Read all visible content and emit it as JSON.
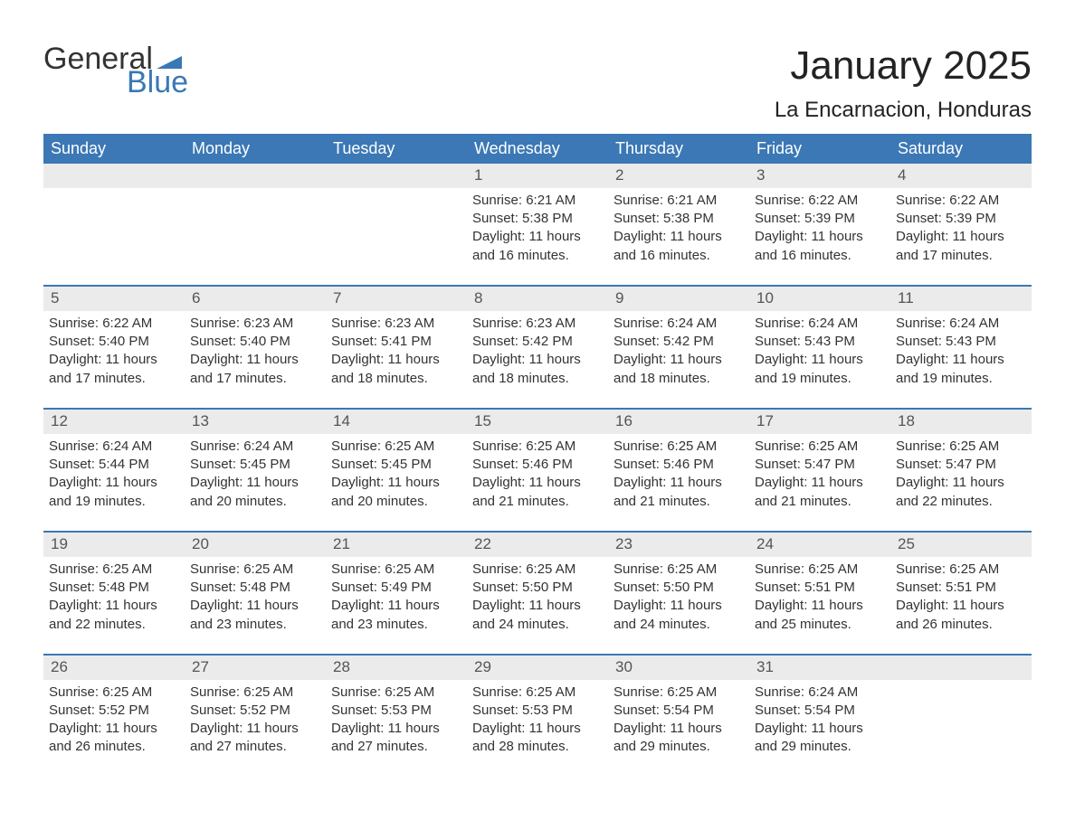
{
  "logo": {
    "word1": "General",
    "word2": "Blue",
    "flag_color": "#3b78b5"
  },
  "title": "January 2025",
  "location": "La Encarnacion, Honduras",
  "colors": {
    "header_bg": "#3b78b5",
    "header_fg": "#ffffff",
    "daynum_bg": "#ebebeb",
    "row_border": "#3b78b5",
    "text": "#333333"
  },
  "typography": {
    "title_fontsize": 44,
    "location_fontsize": 24,
    "header_fontsize": 18,
    "cell_fontsize": 15
  },
  "day_headers": [
    "Sunday",
    "Monday",
    "Tuesday",
    "Wednesday",
    "Thursday",
    "Friday",
    "Saturday"
  ],
  "weeks": [
    [
      null,
      null,
      null,
      {
        "n": "1",
        "sunrise": "6:21 AM",
        "sunset": "5:38 PM",
        "daylight": "11 hours and 16 minutes."
      },
      {
        "n": "2",
        "sunrise": "6:21 AM",
        "sunset": "5:38 PM",
        "daylight": "11 hours and 16 minutes."
      },
      {
        "n": "3",
        "sunrise": "6:22 AM",
        "sunset": "5:39 PM",
        "daylight": "11 hours and 16 minutes."
      },
      {
        "n": "4",
        "sunrise": "6:22 AM",
        "sunset": "5:39 PM",
        "daylight": "11 hours and 17 minutes."
      }
    ],
    [
      {
        "n": "5",
        "sunrise": "6:22 AM",
        "sunset": "5:40 PM",
        "daylight": "11 hours and 17 minutes."
      },
      {
        "n": "6",
        "sunrise": "6:23 AM",
        "sunset": "5:40 PM",
        "daylight": "11 hours and 17 minutes."
      },
      {
        "n": "7",
        "sunrise": "6:23 AM",
        "sunset": "5:41 PM",
        "daylight": "11 hours and 18 minutes."
      },
      {
        "n": "8",
        "sunrise": "6:23 AM",
        "sunset": "5:42 PM",
        "daylight": "11 hours and 18 minutes."
      },
      {
        "n": "9",
        "sunrise": "6:24 AM",
        "sunset": "5:42 PM",
        "daylight": "11 hours and 18 minutes."
      },
      {
        "n": "10",
        "sunrise": "6:24 AM",
        "sunset": "5:43 PM",
        "daylight": "11 hours and 19 minutes."
      },
      {
        "n": "11",
        "sunrise": "6:24 AM",
        "sunset": "5:43 PM",
        "daylight": "11 hours and 19 minutes."
      }
    ],
    [
      {
        "n": "12",
        "sunrise": "6:24 AM",
        "sunset": "5:44 PM",
        "daylight": "11 hours and 19 minutes."
      },
      {
        "n": "13",
        "sunrise": "6:24 AM",
        "sunset": "5:45 PM",
        "daylight": "11 hours and 20 minutes."
      },
      {
        "n": "14",
        "sunrise": "6:25 AM",
        "sunset": "5:45 PM",
        "daylight": "11 hours and 20 minutes."
      },
      {
        "n": "15",
        "sunrise": "6:25 AM",
        "sunset": "5:46 PM",
        "daylight": "11 hours and 21 minutes."
      },
      {
        "n": "16",
        "sunrise": "6:25 AM",
        "sunset": "5:46 PM",
        "daylight": "11 hours and 21 minutes."
      },
      {
        "n": "17",
        "sunrise": "6:25 AM",
        "sunset": "5:47 PM",
        "daylight": "11 hours and 21 minutes."
      },
      {
        "n": "18",
        "sunrise": "6:25 AM",
        "sunset": "5:47 PM",
        "daylight": "11 hours and 22 minutes."
      }
    ],
    [
      {
        "n": "19",
        "sunrise": "6:25 AM",
        "sunset": "5:48 PM",
        "daylight": "11 hours and 22 minutes."
      },
      {
        "n": "20",
        "sunrise": "6:25 AM",
        "sunset": "5:48 PM",
        "daylight": "11 hours and 23 minutes."
      },
      {
        "n": "21",
        "sunrise": "6:25 AM",
        "sunset": "5:49 PM",
        "daylight": "11 hours and 23 minutes."
      },
      {
        "n": "22",
        "sunrise": "6:25 AM",
        "sunset": "5:50 PM",
        "daylight": "11 hours and 24 minutes."
      },
      {
        "n": "23",
        "sunrise": "6:25 AM",
        "sunset": "5:50 PM",
        "daylight": "11 hours and 24 minutes."
      },
      {
        "n": "24",
        "sunrise": "6:25 AM",
        "sunset": "5:51 PM",
        "daylight": "11 hours and 25 minutes."
      },
      {
        "n": "25",
        "sunrise": "6:25 AM",
        "sunset": "5:51 PM",
        "daylight": "11 hours and 26 minutes."
      }
    ],
    [
      {
        "n": "26",
        "sunrise": "6:25 AM",
        "sunset": "5:52 PM",
        "daylight": "11 hours and 26 minutes."
      },
      {
        "n": "27",
        "sunrise": "6:25 AM",
        "sunset": "5:52 PM",
        "daylight": "11 hours and 27 minutes."
      },
      {
        "n": "28",
        "sunrise": "6:25 AM",
        "sunset": "5:53 PM",
        "daylight": "11 hours and 27 minutes."
      },
      {
        "n": "29",
        "sunrise": "6:25 AM",
        "sunset": "5:53 PM",
        "daylight": "11 hours and 28 minutes."
      },
      {
        "n": "30",
        "sunrise": "6:25 AM",
        "sunset": "5:54 PM",
        "daylight": "11 hours and 29 minutes."
      },
      {
        "n": "31",
        "sunrise": "6:24 AM",
        "sunset": "5:54 PM",
        "daylight": "11 hours and 29 minutes."
      },
      null
    ]
  ],
  "labels": {
    "sunrise": "Sunrise: ",
    "sunset": "Sunset: ",
    "daylight": "Daylight: "
  }
}
